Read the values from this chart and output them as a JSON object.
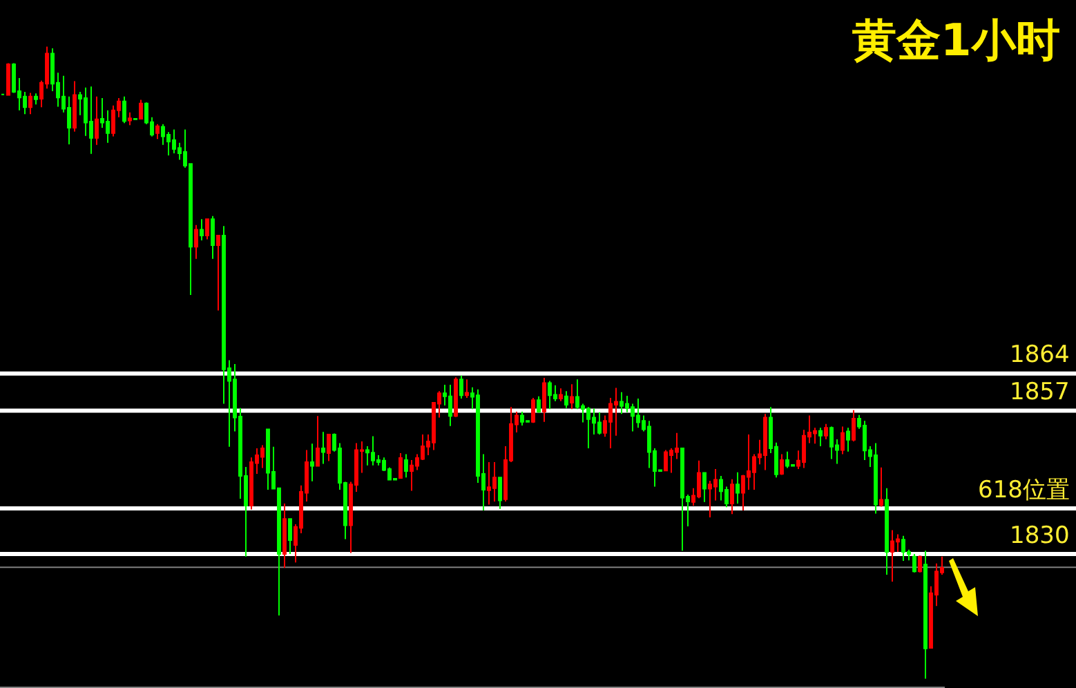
{
  "chart_data": {
    "type": "candlestick",
    "title": "黄金1小时",
    "categories": [
      null,
      null,
      null,
      null,
      null,
      null,
      null,
      null,
      null,
      null,
      null,
      null,
      null,
      null,
      null,
      null,
      null,
      null,
      null,
      null,
      null,
      null,
      null,
      null,
      null,
      null,
      null,
      null,
      null,
      null,
      null,
      null,
      null,
      null,
      null,
      null,
      null,
      null,
      null,
      null,
      null,
      null,
      null,
      null,
      null,
      null,
      null,
      null,
      null,
      null,
      null,
      null,
      null,
      null,
      null,
      null,
      null,
      null,
      null,
      null,
      null,
      null,
      null,
      null,
      null,
      null,
      null,
      null,
      null,
      null,
      null,
      null,
      null,
      null,
      null,
      null,
      null,
      null,
      null,
      null,
      null,
      null,
      null,
      null,
      null,
      null,
      null,
      null,
      null,
      null,
      null,
      null,
      null,
      null,
      null,
      null,
      null,
      null,
      null,
      null,
      null,
      null,
      null,
      null,
      null,
      null,
      null,
      null,
      null,
      null,
      null,
      null,
      null,
      null,
      null,
      null,
      null,
      null,
      null,
      null,
      null,
      null,
      null,
      null,
      null,
      null,
      null,
      null,
      null,
      null,
      null,
      null,
      null,
      null,
      null,
      null,
      null,
      null,
      null,
      null,
      null,
      null,
      null,
      null,
      null,
      null,
      null,
      null,
      null,
      null,
      null,
      null,
      null,
      null,
      null,
      null,
      null,
      null,
      null,
      null,
      null,
      null,
      null,
      null,
      null,
      null,
      null,
      null,
      null,
      null,
      null
    ],
    "ohlc": [
      [
        1916.6,
        1916.6,
        1916.6,
        1916.6
      ],
      [
        1916.5,
        1922.5,
        1916.5,
        1922.3
      ],
      [
        1922.3,
        1922.5,
        1916.9,
        1917.1
      ],
      [
        1917.2,
        1919.7,
        1913.6,
        1916.0
      ],
      [
        1916.2,
        1917.1,
        1912.9,
        1914.2
      ],
      [
        1914.2,
        1916.9,
        1912.9,
        1916.2
      ],
      [
        1916.2,
        1916.8,
        1914.7,
        1915.7
      ],
      [
        1915.8,
        1919.2,
        1914.2,
        1918.8
      ],
      [
        1918.6,
        1925.6,
        1917.7,
        1924.3
      ],
      [
        1924.3,
        1925.3,
        1917.2,
        1918.6
      ],
      [
        1918.8,
        1920.7,
        1914.3,
        1916.0
      ],
      [
        1916.2,
        1920.1,
        1913.2,
        1913.9
      ],
      [
        1914.1,
        1916.2,
        1907.2,
        1910.3
      ],
      [
        1910.3,
        1919.1,
        1909.6,
        1916.5
      ],
      [
        1916.5,
        1917.1,
        1912.7,
        1915.8
      ],
      [
        1915.9,
        1917.9,
        1908.8,
        1911.3
      ],
      [
        1911.5,
        1918.1,
        1905.4,
        1908.4
      ],
      [
        1908.4,
        1916.2,
        1907.1,
        1911.9
      ],
      [
        1912.0,
        1915.9,
        1910.3,
        1911.3
      ],
      [
        1911.5,
        1913.6,
        1907.5,
        1909.3
      ],
      [
        1909.3,
        1914.5,
        1908.7,
        1913.6
      ],
      [
        1913.6,
        1915.9,
        1912.3,
        1915.3
      ],
      [
        1915.3,
        1916.2,
        1911.2,
        1911.6
      ],
      [
        1911.7,
        1913.2,
        1910.8,
        1912.1
      ],
      [
        1912.0,
        1912.0,
        1911.9,
        1911.9
      ],
      [
        1912.0,
        1915.6,
        1911.9,
        1914.9
      ],
      [
        1914.9,
        1915.1,
        1911.0,
        1911.3
      ],
      [
        1911.4,
        1912.3,
        1908.7,
        1909.0
      ],
      [
        1909.3,
        1911.0,
        1908.2,
        1910.6
      ],
      [
        1910.5,
        1911.0,
        1907.1,
        1908.7
      ],
      [
        1909.0,
        1909.5,
        1905.1,
        1907.7
      ],
      [
        1908.0,
        1910.0,
        1905.5,
        1906.3
      ],
      [
        1906.5,
        1907.5,
        1904.3,
        1905.5
      ],
      [
        1905.8,
        1910.0,
        1902.8,
        1903.2
      ],
      [
        1903.5,
        1903.5,
        1878.8,
        1887.9
      ],
      [
        1887.9,
        1892.0,
        1885.6,
        1891.1
      ],
      [
        1891.1,
        1893.1,
        1889.1,
        1890.0
      ],
      [
        1890.0,
        1893.1,
        1889.3,
        1893.1
      ],
      [
        1893.1,
        1893.7,
        1885.6,
        1888.2
      ],
      [
        1888.2,
        1890.0,
        1875.9,
        1890.0
      ],
      [
        1890.0,
        1891.8,
        1858.3,
        1864.8
      ],
      [
        1865.0,
        1866.5,
        1850.2,
        1862.6
      ],
      [
        1862.9,
        1865.8,
        1853.1,
        1855.7
      ],
      [
        1855.9,
        1857.5,
        1840.4,
        1844.7
      ],
      [
        1844.7,
        1846.4,
        1829.5,
        1839.1
      ],
      [
        1839.1,
        1848.2,
        1838.4,
        1847.3
      ],
      [
        1847.1,
        1849.9,
        1845.1,
        1848.6
      ],
      [
        1848.3,
        1850.5,
        1846.2,
        1849.9
      ],
      [
        1853.5,
        1853.5,
        1842.1,
        1845.3
      ],
      [
        1845.5,
        1850.2,
        1842.3,
        1842.3
      ],
      [
        1842.4,
        1842.5,
        1818.4,
        1830.0
      ],
      [
        1830.0,
        1839.5,
        1827.4,
        1836.6
      ],
      [
        1836.6,
        1836.6,
        1830.0,
        1832.6
      ],
      [
        1831.7,
        1835.6,
        1828.4,
        1835.1
      ],
      [
        1834.9,
        1842.9,
        1833.9,
        1841.7
      ],
      [
        1841.5,
        1849.6,
        1839.9,
        1847.3
      ],
      [
        1847.3,
        1850.8,
        1843.7,
        1846.6
      ],
      [
        1846.6,
        1856.0,
        1846.6,
        1849.9
      ],
      [
        1849.9,
        1853.0,
        1847.0,
        1849.2
      ],
      [
        1849.0,
        1852.5,
        1847.5,
        1852.5
      ],
      [
        1852.5,
        1852.7,
        1849.3,
        1849.6
      ],
      [
        1849.9,
        1850.9,
        1842.1,
        1843.4
      ],
      [
        1843.4,
        1843.6,
        1832.8,
        1835.4
      ],
      [
        1835.4,
        1843.6,
        1830.2,
        1843.1
      ],
      [
        1843.0,
        1850.9,
        1841.7,
        1849.6
      ],
      [
        1849.4,
        1851.2,
        1845.3,
        1849.6
      ],
      [
        1849.6,
        1850.3,
        1846.7,
        1849.1
      ],
      [
        1849.1,
        1852.2,
        1846.7,
        1847.6
      ],
      [
        1847.7,
        1848.6,
        1846.7,
        1847.3
      ],
      [
        1847.6,
        1848.2,
        1845.6,
        1845.8
      ],
      [
        1846.0,
        1846.3,
        1844.0,
        1844.0
      ],
      [
        1844.2,
        1844.2,
        1844.0,
        1844.0
      ],
      [
        1844.3,
        1849.0,
        1844.3,
        1848.1
      ],
      [
        1847.7,
        1848.8,
        1844.4,
        1845.6
      ],
      [
        1845.6,
        1847.7,
        1841.9,
        1846.7
      ],
      [
        1846.6,
        1848.8,
        1845.8,
        1848.1
      ],
      [
        1847.9,
        1852.5,
        1847.7,
        1850.3
      ],
      [
        1850.2,
        1852.5,
        1848.6,
        1851.2
      ],
      [
        1851.0,
        1858.6,
        1849.6,
        1858.5
      ],
      [
        1858.3,
        1860.7,
        1855.7,
        1860.3
      ],
      [
        1860.3,
        1861.9,
        1858.0,
        1859.7
      ],
      [
        1859.7,
        1861.9,
        1854.1,
        1856.0
      ],
      [
        1856.0,
        1863.3,
        1855.8,
        1862.9
      ],
      [
        1862.9,
        1863.6,
        1859.3,
        1859.9
      ],
      [
        1859.9,
        1862.9,
        1859.4,
        1860.4
      ],
      [
        1860.3,
        1861.4,
        1857.3,
        1859.6
      ],
      [
        1859.9,
        1861.0,
        1843.4,
        1844.7
      ],
      [
        1845.1,
        1848.8,
        1838.2,
        1842.1
      ],
      [
        1842.0,
        1847.3,
        1839.3,
        1842.6
      ],
      [
        1842.4,
        1847.3,
        1839.9,
        1844.4
      ],
      [
        1844.4,
        1844.4,
        1838.5,
        1840.1
      ],
      [
        1840.3,
        1850.3,
        1839.9,
        1847.7
      ],
      [
        1847.6,
        1857.7,
        1847.3,
        1854.5
      ],
      [
        1854.4,
        1856.8,
        1852.9,
        1856.1
      ],
      [
        1856.1,
        1856.8,
        1854.2,
        1854.9
      ],
      [
        1855.1,
        1855.1,
        1854.9,
        1854.9
      ],
      [
        1854.9,
        1859.4,
        1854.7,
        1859.0
      ],
      [
        1859.0,
        1859.7,
        1856.6,
        1856.8
      ],
      [
        1856.8,
        1863.2,
        1854.9,
        1862.2
      ],
      [
        1862.2,
        1862.6,
        1857.3,
        1859.9
      ],
      [
        1860.0,
        1861.8,
        1858.8,
        1859.3
      ],
      [
        1859.3,
        1861.2,
        1858.8,
        1860.0
      ],
      [
        1859.7,
        1860.7,
        1857.5,
        1858.1
      ],
      [
        1858.5,
        1862.0,
        1857.3,
        1859.6
      ],
      [
        1859.6,
        1862.9,
        1857.3,
        1857.7
      ],
      [
        1857.9,
        1858.3,
        1854.8,
        1857.3
      ],
      [
        1857.4,
        1857.7,
        1849.9,
        1855.4
      ],
      [
        1855.7,
        1857.4,
        1852.5,
        1854.7
      ],
      [
        1854.8,
        1856.7,
        1852.5,
        1852.8
      ],
      [
        1852.8,
        1856.1,
        1852.1,
        1855.1
      ],
      [
        1854.9,
        1859.4,
        1849.9,
        1858.3
      ],
      [
        1858.1,
        1861.3,
        1852.3,
        1858.7
      ],
      [
        1858.7,
        1860.5,
        1856.4,
        1857.9
      ],
      [
        1858.3,
        1859.8,
        1856.7,
        1857.5
      ],
      [
        1857.7,
        1858.3,
        1853.1,
        1856.0
      ],
      [
        1856.1,
        1859.3,
        1853.8,
        1854.8
      ],
      [
        1855.1,
        1856.1,
        1853.1,
        1853.5
      ],
      [
        1854.0,
        1855.1,
        1846.2,
        1849.2
      ],
      [
        1849.4,
        1849.9,
        1842.7,
        1845.6
      ],
      [
        1845.8,
        1845.8,
        1845.6,
        1845.6
      ],
      [
        1845.7,
        1849.6,
        1845.6,
        1849.2
      ],
      [
        1848.6,
        1849.9,
        1845.3,
        1849.5
      ],
      [
        1849.2,
        1852.8,
        1847.9,
        1849.9
      ],
      [
        1849.9,
        1849.9,
        1830.6,
        1840.6
      ],
      [
        1840.8,
        1841.2,
        1835.2,
        1839.9
      ],
      [
        1839.8,
        1842.4,
        1839.1,
        1841.0
      ],
      [
        1840.8,
        1847.6,
        1840.5,
        1845.3
      ],
      [
        1845.3,
        1845.3,
        1839.8,
        1842.3
      ],
      [
        1842.3,
        1843.8,
        1836.9,
        1843.1
      ],
      [
        1842.7,
        1846.0,
        1840.1,
        1844.0
      ],
      [
        1844.0,
        1844.7,
        1840.1,
        1841.8
      ],
      [
        1842.1,
        1842.7,
        1838.8,
        1839.5
      ],
      [
        1839.5,
        1844.1,
        1837.5,
        1843.1
      ],
      [
        1843.1,
        1845.4,
        1839.5,
        1841.5
      ],
      [
        1841.5,
        1844.9,
        1838.2,
        1844.7
      ],
      [
        1844.5,
        1852.5,
        1842.1,
        1845.6
      ],
      [
        1845.4,
        1848.8,
        1842.1,
        1848.3
      ],
      [
        1848.2,
        1851.5,
        1846.9,
        1848.8
      ],
      [
        1848.6,
        1856.4,
        1845.8,
        1855.7
      ],
      [
        1855.7,
        1857.7,
        1849.0,
        1849.9
      ],
      [
        1850.2,
        1851.0,
        1844.4,
        1845.0
      ],
      [
        1845.1,
        1848.8,
        1844.9,
        1847.7
      ],
      [
        1847.7,
        1849.3,
        1846.2,
        1846.6
      ],
      [
        1846.8,
        1846.8,
        1846.6,
        1846.6
      ],
      [
        1846.6,
        1849.5,
        1846.0,
        1847.6
      ],
      [
        1847.3,
        1853.4,
        1846.2,
        1852.3
      ],
      [
        1852.1,
        1856.1,
        1850.9,
        1852.9
      ],
      [
        1852.7,
        1853.8,
        1850.8,
        1853.2
      ],
      [
        1853.2,
        1853.8,
        1850.3,
        1852.3
      ],
      [
        1852.3,
        1854.5,
        1851.6,
        1853.8
      ],
      [
        1853.8,
        1854.0,
        1847.9,
        1850.2
      ],
      [
        1850.5,
        1851.6,
        1847.0,
        1849.6
      ],
      [
        1849.6,
        1854.0,
        1848.8,
        1852.8
      ],
      [
        1853.1,
        1853.8,
        1849.3,
        1851.5
      ],
      [
        1851.5,
        1857.1,
        1851.2,
        1855.5
      ],
      [
        1855.5,
        1856.2,
        1853.6,
        1854.0
      ],
      [
        1854.2,
        1855.1,
        1847.7,
        1849.5
      ],
      [
        1849.6,
        1850.3,
        1846.4,
        1848.4
      ],
      [
        1848.6,
        1850.9,
        1837.6,
        1839.3
      ],
      [
        1839.2,
        1846.3,
        1838.9,
        1840.2
      ],
      [
        1840.2,
        1842.4,
        1826.1,
        1830.4
      ],
      [
        1830.4,
        1834.5,
        1824.8,
        1832.4
      ],
      [
        1832.3,
        1833.7,
        1830.4,
        1832.8
      ],
      [
        1832.7,
        1833.4,
        1828.7,
        1830.4
      ],
      [
        1830.4,
        1830.8,
        1828.8,
        1830.0
      ],
      [
        1829.5,
        1830.0,
        1826.5,
        1826.7
      ],
      [
        1826.7,
        1829.7,
        1826.5,
        1829.5
      ],
      [
        1828.0,
        1830.6,
        1806.5,
        1812.2
      ],
      [
        1812.3,
        1823.9,
        1812.2,
        1822.6
      ],
      [
        1822.3,
        1828.2,
        1820.2,
        1826.7
      ],
      [
        1826.5,
        1829.5,
        1826.1,
        1827.4
      ]
    ],
    "colors": [
      "#00ff00",
      "#ff0000",
      "#00ff00",
      "#00ff00",
      "#00ff00",
      "#ff0000",
      "#00ff00",
      "#ff0000",
      "#ff0000",
      "#00ff00",
      "#00ff00",
      "#00ff00",
      "#00ff00",
      "#ff0000",
      "#00ff00",
      "#00ff00",
      "#00ff00",
      "#ff0000",
      "#00ff00",
      "#00ff00",
      "#ff0000",
      "#ff0000",
      "#00ff00",
      "#ff0000",
      "#00ff00",
      "#ff0000",
      "#00ff00",
      "#00ff00",
      "#ff0000",
      "#00ff00",
      "#00ff00",
      "#00ff00",
      "#00ff00",
      "#00ff00",
      "#00ff00",
      "#ff0000",
      "#00ff00",
      "#ff0000",
      "#00ff00",
      "#ff0000",
      "#00ff00",
      "#00ff00",
      "#00ff00",
      "#00ff00",
      "#00ff00",
      "#ff0000",
      "#ff0000",
      "#ff0000",
      "#00ff00",
      "#00ff00",
      "#00ff00",
      "#ff0000",
      "#00ff00",
      "#ff0000",
      "#ff0000",
      "#ff0000",
      "#00ff00",
      "#ff0000",
      "#00ff00",
      "#ff0000",
      "#00ff00",
      "#00ff00",
      "#00ff00",
      "#ff0000",
      "#ff0000",
      "#ff0000",
      "#00ff00",
      "#00ff00",
      "#00ff00",
      "#00ff00",
      "#00ff00",
      "#00ff00",
      "#ff0000",
      "#00ff00",
      "#ff0000",
      "#ff0000",
      "#ff0000",
      "#ff0000",
      "#ff0000",
      "#ff0000",
      "#00ff00",
      "#00ff00",
      "#ff0000",
      "#00ff00",
      "#ff0000",
      "#00ff00",
      "#00ff00",
      "#00ff00",
      "#ff0000",
      "#ff0000",
      "#00ff00",
      "#ff0000",
      "#ff0000",
      "#ff0000",
      "#00ff00",
      "#00ff00",
      "#ff0000",
      "#00ff00",
      "#ff0000",
      "#00ff00",
      "#00ff00",
      "#ff0000",
      "#00ff00",
      "#ff0000",
      "#00ff00",
      "#00ff00",
      "#00ff00",
      "#00ff00",
      "#00ff00",
      "#ff0000",
      "#ff0000",
      "#ff0000",
      "#00ff00",
      "#00ff00",
      "#00ff00",
      "#00ff00",
      "#00ff00",
      "#00ff00",
      "#00ff00",
      "#00ff00",
      "#ff0000",
      "#ff0000",
      "#ff0000",
      "#00ff00",
      "#00ff00",
      "#ff0000",
      "#ff0000",
      "#00ff00",
      "#ff0000",
      "#ff0000",
      "#00ff00",
      "#00ff00",
      "#ff0000",
      "#00ff00",
      "#ff0000",
      "#ff0000",
      "#ff0000",
      "#ff0000",
      "#ff0000",
      "#00ff00",
      "#00ff00",
      "#ff0000",
      "#00ff00",
      "#00ff00",
      "#ff0000",
      "#ff0000",
      "#ff0000",
      "#ff0000",
      "#00ff00",
      "#ff0000",
      "#00ff00",
      "#00ff00",
      "#ff0000",
      "#00ff00",
      "#ff0000",
      "#00ff00",
      "#00ff00",
      "#00ff00",
      "#00ff00",
      "#ff0000",
      "#00ff00",
      "#ff0000",
      "#ff0000",
      "#00ff00",
      "#00ff00",
      "#00ff00",
      "#ff0000",
      "#00ff00",
      "#ff0000",
      "#ff0000",
      "#ff0000"
    ],
    "ref_lines": [
      {
        "axis": "y",
        "value": 1864,
        "label": "1864",
        "color": "#ffffff"
      },
      {
        "axis": "y",
        "value": 1857,
        "label": "1857",
        "color": "#ffffff"
      },
      {
        "axis": "y",
        "value": 1838.6,
        "label": "618位置",
        "color": "#ffffff"
      },
      {
        "axis": "y",
        "value": 1830,
        "label": "1830",
        "color": "#ffffff"
      },
      {
        "axis": "y",
        "value": 1827.5,
        "color": "#808080"
      }
    ],
    "ylim": [
      1805,
      1934.4
    ],
    "tick_labels": false,
    "grid": false
  }
}
